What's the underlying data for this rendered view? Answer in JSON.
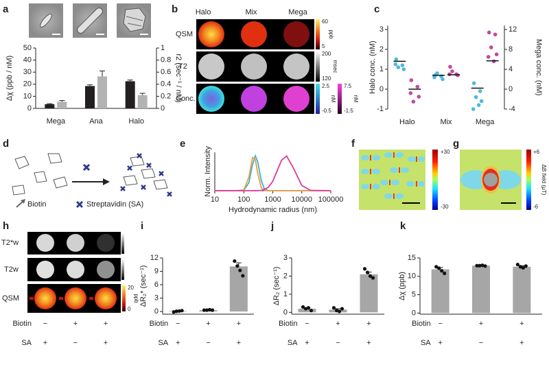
{
  "panel_labels": [
    "a",
    "b",
    "c",
    "d",
    "e",
    "f",
    "g",
    "h",
    "i",
    "j",
    "k"
  ],
  "panels": {
    "b": {
      "columns": [
        "Halo",
        "Mix",
        "Mega"
      ],
      "column_colors": [
        "#3fb5dc",
        "#222222",
        "#c2439c"
      ],
      "rows": [
        "QSM",
        "T2",
        "Conc."
      ],
      "qsm_colorbar": [
        "60",
        "5",
        "ppb"
      ],
      "t2_colorbar": [
        "200",
        "120",
        "msec"
      ],
      "conc_colorbar": [
        "2.5",
        "-0.5",
        "nM"
      ],
      "conc_colorbar_2": [
        "7.5",
        "-1.5",
        "nM"
      ]
    },
    "d": {
      "legend": [
        "Biotin",
        "Streptavidin (SA)"
      ]
    },
    "f": {
      "colorbar": [
        "+30",
        "-30"
      ]
    },
    "g": {
      "colorbar": [
        "+6",
        "-6"
      ],
      "label": "ΔB field (μT)"
    },
    "h": {
      "rows": [
        "T2*w",
        "T2w",
        "QSM"
      ],
      "colorbar": [
        "20",
        "0",
        "ppb"
      ],
      "condition_rows": [
        {
          "label": "Biotin",
          "values": [
            "−",
            "+",
            "+"
          ]
        },
        {
          "label": "SA",
          "values": [
            "+",
            "−",
            "+"
          ]
        }
      ]
    }
  },
  "chart_data": [
    {
      "type": "bar",
      "categories": [
        "Mega",
        "Ana",
        "Halo"
      ],
      "category_colors": [
        "#c2439c",
        "#8dc63f",
        "#3fb5dc"
      ],
      "ylabel": "Δχ (ppb / nM)",
      "y2label": "r2 (sec⁻¹ / nM)",
      "ylim": [
        0,
        50
      ],
      "yticks": [
        0,
        10,
        20,
        30,
        40,
        50
      ],
      "y2lim": [
        0,
        1
      ],
      "y2ticks": [
        0,
        0.2,
        0.4,
        0.6,
        0.8,
        1
      ],
      "series": [
        {
          "color": "#231f20",
          "values": [
            3.5,
            18.5,
            22.5
          ],
          "errors": [
            0.4,
            1.0,
            1.0
          ]
        },
        {
          "color": "#b3b3b3",
          "axis": "y2",
          "values": [
            0.11,
            0.53,
            0.22
          ],
          "errors": [
            0.02,
            0.09,
            0.03
          ]
        }
      ]
    },
    {
      "type": "strip",
      "categories": [
        "Halo",
        "Mix",
        "Mega"
      ],
      "category_colors": [
        "#3fb5dc",
        "#222222",
        "#c2439c"
      ],
      "ylabel": "Halo conc. (nM)",
      "y2label": "Mega conc. (nM)",
      "ylim": [
        -1,
        3.2
      ],
      "yticks": [
        -1,
        0,
        1,
        2,
        3
      ],
      "y2lim": [
        -4,
        12.8
      ],
      "y2ticks": [
        -4,
        0,
        4,
        8,
        12
      ],
      "series": [
        {
          "color": "#4fb8dc",
          "values": [
            [
              1.5,
              1.2,
              1.1,
              1.0,
              1.25
            ],
            [
              0.7,
              0.65,
              0.8,
              0.5,
              0.6
            ],
            [
              0.3,
              -0.1,
              -0.4,
              -0.6,
              -1.0,
              -0.8
            ]
          ],
          "means": [
            1.4,
            0.7,
            0.05
          ]
        },
        {
          "color": "#c04a9f",
          "axis": "y2",
          "values": [
            [
              1.8,
              0.5,
              -2.5,
              -1.5,
              -0.8
            ],
            [
              4.5,
              3.0,
              3.6,
              2.8,
              3.0
            ],
            [
              11.4,
              11.0,
              8.4,
              7.0,
              6.5,
              5.6
            ]
          ],
          "means": [
            0,
            2.9,
            5.7
          ]
        }
      ]
    },
    {
      "type": "line",
      "xlabel": "Hydrodynamic radius (nm)",
      "ylabel": "Norm. Intensity",
      "log_x": true,
      "x": [
        10,
        20,
        50,
        100,
        150,
        200,
        250,
        300,
        400,
        500,
        700,
        1000,
        2000,
        3000,
        5000,
        10000,
        20000,
        100000
      ],
      "xlim": [
        10,
        100000
      ],
      "xticks": [
        10,
        100,
        1000,
        10000,
        100000
      ],
      "ylim": [
        0,
        1.1
      ],
      "series": [
        {
          "color": "#35b3d8",
          "values": [
            0,
            0,
            0,
            0.009,
            0.23,
            0.75,
            1.0,
            0.84,
            0.3,
            0.07,
            0,
            0,
            0,
            0,
            0,
            0,
            0,
            0
          ]
        },
        {
          "color": "#f19a3e",
          "values": [
            0,
            0,
            0,
            0.018,
            0.39,
            0.95,
            0.89,
            0.52,
            0.09,
            0.011,
            0,
            0,
            0,
            0,
            0,
            0,
            0,
            0
          ]
        },
        {
          "color": "#e0369a",
          "values": [
            0,
            0,
            0,
            0,
            0,
            0,
            0.001,
            0.002,
            0.01,
            0.03,
            0.1,
            0.27,
            0.87,
            0.995,
            0.67,
            0.15,
            0.01,
            0
          ]
        }
      ]
    },
    {
      "type": "bar",
      "ylabel": "ΔR₂* (sec⁻¹)",
      "ylim": [
        -0.6,
        12
      ],
      "yticks": [
        0,
        3,
        6,
        9,
        12
      ],
      "color": "#a6a6a6",
      "values": [
        0.1,
        0.3,
        10.1
      ],
      "errors": [
        0.1,
        0.1,
        0.8
      ],
      "points": [
        [
          -0.1,
          0.05,
          0.1,
          0.2
        ],
        [
          0.3,
          0.3,
          0.4,
          0.3
        ],
        [
          11.3,
          10.2,
          9.2,
          8.0
        ]
      ],
      "condition_rows": [
        {
          "label": "Biotin",
          "values": [
            "−",
            "+",
            "+"
          ]
        },
        {
          "label": "SA",
          "values": [
            "+",
            "−",
            "+"
          ]
        }
      ]
    },
    {
      "type": "bar",
      "ylabel": "ΔR₂ (sec⁻¹)",
      "ylim": [
        -0.1,
        3
      ],
      "yticks": [
        0,
        1,
        2,
        3
      ],
      "color": "#a6a6a6",
      "values": [
        0.2,
        0.15,
        2.1
      ],
      "errors": [
        0.05,
        0.05,
        0.12
      ],
      "points": [
        [
          0.3,
          0.2,
          0.25,
          0.1
        ],
        [
          0.25,
          0.1,
          0.05,
          0.2
        ],
        [
          2.4,
          2.2,
          2.0,
          1.9
        ]
      ],
      "condition_rows": [
        {
          "label": "Biotin",
          "values": [
            "−",
            "+",
            "+"
          ]
        },
        {
          "label": "SA",
          "values": [
            "+",
            "−",
            "+"
          ]
        }
      ]
    },
    {
      "type": "bar",
      "ylabel": "Δχ (ppb)",
      "ylim": [
        -0.3,
        15
      ],
      "yticks": [
        0,
        5,
        10,
        15
      ],
      "color": "#a6a6a6",
      "values": [
        11.9,
        12.9,
        12.6
      ],
      "errors": [
        0.5,
        0.1,
        0.3
      ],
      "points": [
        [
          12.6,
          12.2,
          11.5,
          10.8
        ],
        [
          12.9,
          12.9,
          13.0,
          12.8
        ],
        [
          13.2,
          12.6,
          12.3,
          12.8
        ]
      ],
      "condition_rows": [
        {
          "label": "Biotin",
          "values": [
            "−",
            "+",
            "+"
          ]
        },
        {
          "label": "SA",
          "values": [
            "+",
            "−",
            "+"
          ]
        }
      ]
    }
  ]
}
